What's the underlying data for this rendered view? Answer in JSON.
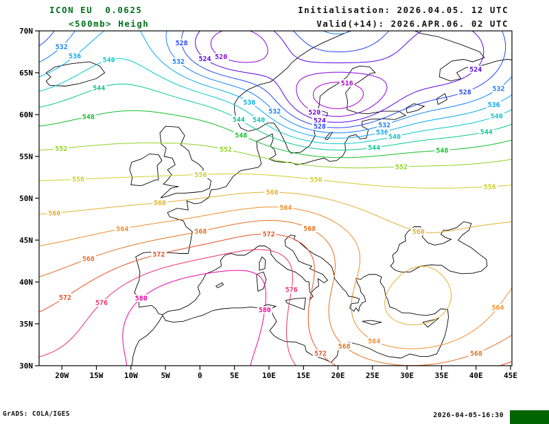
{
  "header": {
    "model_line": "ICON EU  0.0625",
    "level_line": "<500mb> Heigh",
    "init_line": "Initialisation: 2026.04.05. 12 UTC",
    "valid_line": "Valid(+14): 2026.APR.06. 02 UTC"
  },
  "footer": {
    "grads_credit": "GrADS: COLA/IGES",
    "timestamp": "2026-04-05-16:30"
  },
  "colors": {
    "title_green": "#00701d",
    "header_text": "#111111",
    "frame": "#000000",
    "coastline": "#000000",
    "corner_box_green": "#006400",
    "background": "#ffffff"
  },
  "axes": {
    "lat_ticks": [
      {
        "label": "70N",
        "value": 70
      },
      {
        "label": "65N",
        "value": 65
      },
      {
        "label": "60N",
        "value": 60
      },
      {
        "label": "55N",
        "value": 55
      },
      {
        "label": "50N",
        "value": 50
      },
      {
        "label": "45N",
        "value": 45
      },
      {
        "label": "40N",
        "value": 40
      },
      {
        "label": "35N",
        "value": 35
      },
      {
        "label": "30N",
        "value": 30
      }
    ],
    "lon_ticks": [
      {
        "label": "20W",
        "value": -20
      },
      {
        "label": "15W",
        "value": -15
      },
      {
        "label": "10W",
        "value": -10
      },
      {
        "label": "5W",
        "value": -5
      },
      {
        "label": "0",
        "value": 0
      },
      {
        "label": "5E",
        "value": 5
      },
      {
        "label": "10E",
        "value": 10
      },
      {
        "label": "15E",
        "value": 15
      },
      {
        "label": "20E",
        "value": 20
      },
      {
        "label": "25E",
        "value": 25
      },
      {
        "label": "30E",
        "value": 30
      },
      {
        "label": "35E",
        "value": 35
      },
      {
        "label": "40E",
        "value": 40
      },
      {
        "label": "45E",
        "value": 45
      }
    ]
  },
  "chart_data": {
    "type": "contour_map",
    "title": "ICON EU 500mb Height",
    "lon_range": [
      -23.3,
      45.2
    ],
    "lat_range": [
      30,
      70
    ],
    "contour_interval": 4,
    "levels": [
      516,
      520,
      524,
      528,
      532,
      536,
      540,
      544,
      548,
      552,
      556,
      560,
      564,
      568,
      572,
      576,
      580
    ],
    "level_colors": [
      "#aa00cd",
      "#8400e0",
      "#5a00e6",
      "#2343fa",
      "#0f7dff",
      "#00aaf0",
      "#00c8c8",
      "#00c88c",
      "#0fbe28",
      "#8cd21e",
      "#cdcd28",
      "#e1af2d",
      "#f08c28",
      "#e66e1e",
      "#eb4b1e",
      "#f02d64",
      "#f000a0"
    ],
    "features": {
      "low_center_labels": [
        "516"
      ],
      "high_center_labels": [
        "580"
      ],
      "low_region": "Scandinavia / Baltic with lobes toward Norwegian Sea and NE Russia",
      "high_region": "Iberia / western Mediterranean ridge extending to Italy"
    },
    "field_model": {
      "base_at_50N": 558,
      "lapse_per_deg_south": 0.9,
      "centers": [
        {
          "kind": "low",
          "amp": -24,
          "lon": 5,
          "lat": 68,
          "sig_lon": 10,
          "sig_lat": 5
        },
        {
          "kind": "low",
          "amp": -30,
          "lon": 19,
          "lat": 61.5,
          "sig_lon": 10,
          "sig_lat": 5
        },
        {
          "kind": "low",
          "amp": -22,
          "lon": 36,
          "lat": 66,
          "sig_lon": 13,
          "sig_lat": 8
        },
        {
          "kind": "low",
          "amp": -18,
          "lon": -28,
          "lat": 71,
          "sig_lon": 11,
          "sig_lat": 9
        },
        {
          "kind": "high",
          "amp": 15,
          "lon": 0,
          "lat": 37.5,
          "sig_lon": 16,
          "sig_lat": 8
        },
        {
          "kind": "high",
          "amp": 8,
          "lon": 12,
          "lat": 44,
          "sig_lon": 10,
          "sig_lat": 6
        },
        {
          "kind": "low",
          "amp": -12,
          "lon": 30,
          "lat": 35,
          "sig_lon": 16,
          "sig_lat": 8
        }
      ]
    }
  }
}
